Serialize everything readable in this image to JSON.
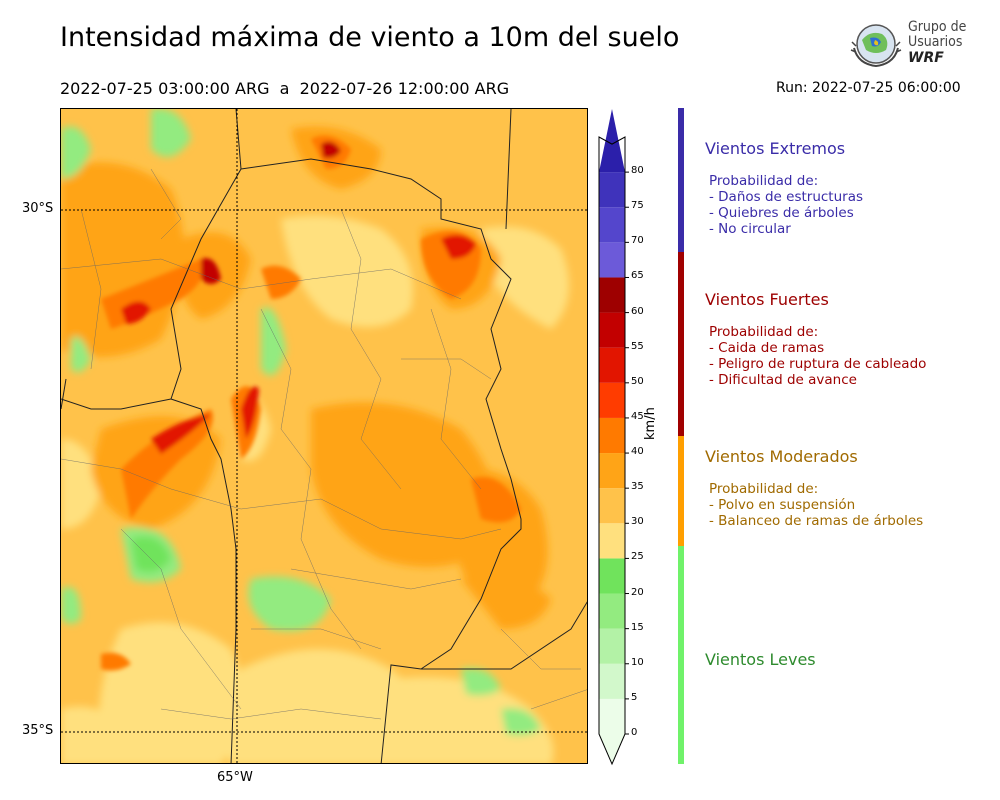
{
  "header": {
    "title": "Intensidad máxima de viento a 10m del suelo",
    "period": "2022-07-25 03:00:00 ARG  a  2022-07-26 12:00:00 ARG",
    "run": "Run: 2022-07-25 06:00:00"
  },
  "logo": {
    "line1": "Grupo de",
    "line2": "Usuarios",
    "line3": "WRF"
  },
  "map": {
    "lat_labels": [
      "30°S",
      "35°S"
    ],
    "lon_labels": [
      "65°W"
    ]
  },
  "colorbar": {
    "unit": "km/h",
    "ticks": [
      "0",
      "5",
      "10",
      "15",
      "20",
      "25",
      "30",
      "35",
      "40",
      "45",
      "50",
      "55",
      "60",
      "65",
      "70",
      "75",
      "80"
    ],
    "colors": [
      "#ecfde9",
      "#d2f8cb",
      "#b3f2a6",
      "#93eb80",
      "#70e35c",
      "#ffe07e",
      "#ffc24a",
      "#ffa417",
      "#ff7a00",
      "#ff3c00",
      "#e21500",
      "#c20000",
      "#9e0000",
      "#6c5ad9",
      "#5446cc",
      "#3f33bb",
      "#2b1faa"
    ]
  },
  "categories": [
    {
      "title": "Vientos Extremos",
      "subtitle": "Probabilidad de:",
      "items": [
        "- Daños de estructuras",
        "- Quiebres de árboles",
        "- No circular"
      ],
      "color": "#3a2ca8"
    },
    {
      "title": "Vientos Fuertes",
      "subtitle": "Probabilidad de:",
      "items": [
        "- Caida de ramas",
        "- Peligro de ruptura de cableado",
        "- Dificultad de avance"
      ],
      "color": "#9d0000"
    },
    {
      "title": "Vientos Moderados",
      "subtitle": "Probabilidad de:",
      "items": [
        "- Polvo en suspensión",
        "- Balanceo de ramas de árboles"
      ],
      "color": "#a06a00"
    },
    {
      "title": "Vientos Leves",
      "color": "#2e8b2e"
    }
  ],
  "band_colors": [
    "#3a2ca8",
    "#a00000",
    "#ff9f00",
    "#70f26a"
  ]
}
